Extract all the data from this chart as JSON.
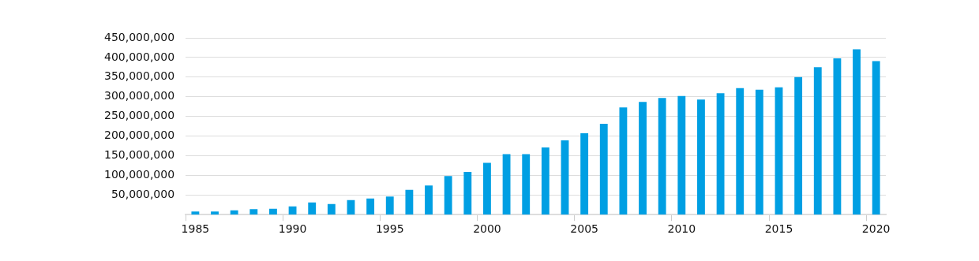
{
  "chart_data": {
    "type": "bar",
    "categories": [
      "1985",
      null,
      null,
      null,
      null,
      "1990",
      null,
      null,
      null,
      null,
      "1995",
      null,
      null,
      null,
      null,
      "2000",
      null,
      null,
      null,
      null,
      "2005",
      null,
      null,
      null,
      null,
      "2010",
      null,
      null,
      null,
      null,
      "2015",
      null,
      null,
      null,
      null,
      "2020"
    ],
    "series": [
      {
        "color": "#009fe3",
        "values": [
          8000000,
          8000000,
          11000000,
          14000000,
          15000000,
          21000000,
          31000000,
          27000000,
          37000000,
          41000000,
          46000000,
          63000000,
          74000000,
          98000000,
          109000000,
          132000000,
          154000000,
          154000000,
          171000000,
          189000000,
          207000000,
          231000000,
          273000000,
          287000000,
          297000000,
          302000000,
          293000000,
          309000000,
          322000000,
          318000000,
          324000000,
          350000000,
          375000000,
          398000000,
          421000000,
          391000000
        ]
      }
    ],
    "ylim": [
      0,
      450000000
    ],
    "yticks": [
      {
        "value": 50000000,
        "label": "50,000,000"
      },
      {
        "value": 100000000,
        "label": "100,000,000"
      },
      {
        "value": 150000000,
        "label": "150,000,000"
      },
      {
        "value": 200000000,
        "label": "200,000,000"
      },
      {
        "value": 250000000,
        "label": "250,000,000"
      },
      {
        "value": 300000000,
        "label": "300,000,000"
      },
      {
        "value": 350000000,
        "label": "350,000,000"
      },
      {
        "value": 400000000,
        "label": "400,000,000"
      },
      {
        "value": 450000000,
        "label": "450,000,000"
      }
    ],
    "grid": "y",
    "legend": false
  }
}
